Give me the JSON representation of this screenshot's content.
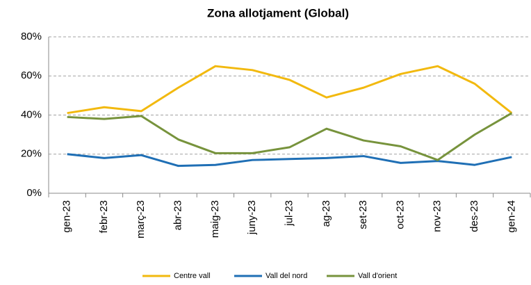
{
  "chart_data": {
    "type": "line",
    "title": "Zona allotjament (Global)",
    "categories": [
      "gen-23",
      "febr-23",
      "març-23",
      "abr-23",
      "maig-23",
      "juny-23",
      "jul-23",
      "ag-23",
      "set-23",
      "oct-23",
      "nov-23",
      "des-23",
      "gen-24"
    ],
    "series": [
      {
        "name": "Centre vall",
        "color": "#f2b90f",
        "values": [
          41,
          44,
          42,
          54,
          65,
          63,
          58,
          49,
          54,
          61,
          65,
          56,
          41
        ]
      },
      {
        "name": "Vall del nord",
        "color": "#1f6fb5",
        "values": [
          20,
          18,
          19.5,
          14,
          14.5,
          17,
          17.5,
          18,
          19,
          15.5,
          16.5,
          14.5,
          18.5
        ]
      },
      {
        "name": "Vall d'orient",
        "color": "#77933c",
        "values": [
          39,
          38,
          39.5,
          27.5,
          20.5,
          20.5,
          23.5,
          33,
          27,
          24,
          17,
          30,
          41
        ]
      }
    ],
    "ylim": [
      0,
      80
    ],
    "yticks": [
      {
        "value": 0,
        "label": "0%"
      },
      {
        "value": 20,
        "label": "20%"
      },
      {
        "value": 40,
        "label": "40%"
      },
      {
        "value": 60,
        "label": "60%"
      },
      {
        "value": 80,
        "label": "80%"
      }
    ],
    "grid": true,
    "legend": "bottom"
  }
}
